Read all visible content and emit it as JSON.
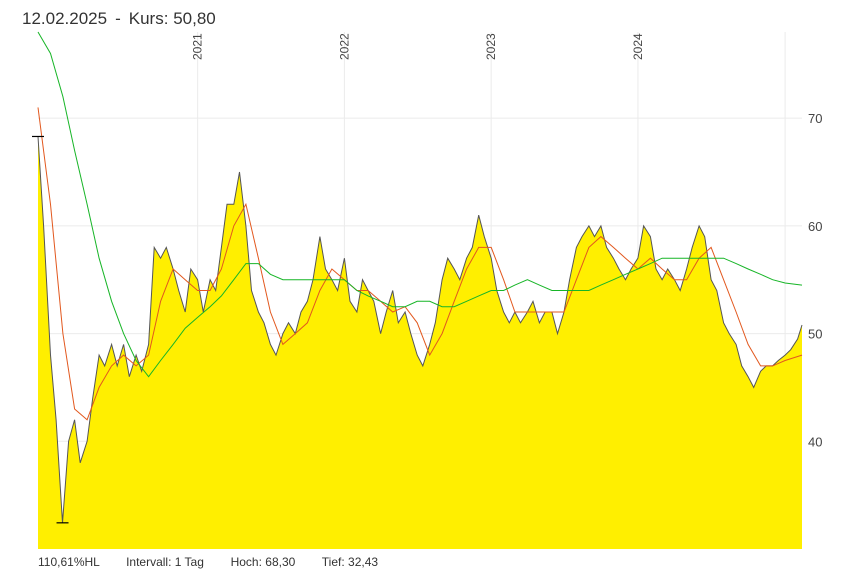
{
  "header": {
    "date": "12.02.2025",
    "separator": "-",
    "price_label": "Kurs:",
    "price_value": "50,80"
  },
  "footer": {
    "hl_ratio": "110,61%HL",
    "interval": "Intervall: 1 Tag",
    "high_label": "Hoch:",
    "high_value": "68,30",
    "low_label": "Tief:",
    "low_value": "32,43"
  },
  "colors": {
    "area_fill": "#ffef00",
    "price_line": "#555555",
    "ma_short": "#e2581e",
    "ma_long": "#17b527",
    "grid": "#ebebeb"
  },
  "chart_data": {
    "type": "area",
    "x_tick_labels": [
      "2021",
      "2022",
      "2023",
      "2024"
    ],
    "y_tick_labels": [
      "40",
      "50",
      "60",
      "70"
    ],
    "ylim": [
      30,
      78
    ],
    "xlim": [
      "2019-12-01",
      "2025-02-12"
    ],
    "grid": true,
    "high": 68.3,
    "low": 32.43,
    "series": [
      {
        "role": "price",
        "points": [
          [
            "2019-12-01",
            68.3
          ],
          [
            "2019-12-15",
            60.0
          ],
          [
            "2020-01-01",
            48.0
          ],
          [
            "2020-01-15",
            42.0
          ],
          [
            "2020-01-31",
            32.43
          ],
          [
            "2020-02-15",
            40.0
          ],
          [
            "2020-03-01",
            42.0
          ],
          [
            "2020-03-15",
            38.0
          ],
          [
            "2020-04-01",
            40.0
          ],
          [
            "2020-04-15",
            44.0
          ],
          [
            "2020-05-01",
            48.0
          ],
          [
            "2020-05-15",
            47.0
          ],
          [
            "2020-06-01",
            49.0
          ],
          [
            "2020-06-15",
            47.0
          ],
          [
            "2020-07-01",
            49.0
          ],
          [
            "2020-07-15",
            46.0
          ],
          [
            "2020-08-01",
            48.0
          ],
          [
            "2020-08-15",
            46.5
          ],
          [
            "2020-09-01",
            49.0
          ],
          [
            "2020-09-15",
            58.0
          ],
          [
            "2020-10-01",
            57.0
          ],
          [
            "2020-10-15",
            58.0
          ],
          [
            "2020-11-01",
            56.0
          ],
          [
            "2020-11-15",
            54.0
          ],
          [
            "2020-12-01",
            52.0
          ],
          [
            "2020-12-15",
            56.0
          ],
          [
            "2021-01-01",
            55.0
          ],
          [
            "2021-01-15",
            52.0
          ],
          [
            "2021-02-01",
            55.0
          ],
          [
            "2021-02-15",
            54.0
          ],
          [
            "2021-03-01",
            58.0
          ],
          [
            "2021-03-15",
            62.0
          ],
          [
            "2021-04-01",
            62.0
          ],
          [
            "2021-04-15",
            65.0
          ],
          [
            "2021-05-01",
            60.0
          ],
          [
            "2021-05-15",
            54.0
          ],
          [
            "2021-06-01",
            52.0
          ],
          [
            "2021-06-15",
            51.0
          ],
          [
            "2021-07-01",
            49.0
          ],
          [
            "2021-07-15",
            48.0
          ],
          [
            "2021-08-01",
            50.0
          ],
          [
            "2021-08-15",
            51.0
          ],
          [
            "2021-09-01",
            50.0
          ],
          [
            "2021-09-15",
            52.0
          ],
          [
            "2021-10-01",
            53.0
          ],
          [
            "2021-10-15",
            55.0
          ],
          [
            "2021-11-01",
            59.0
          ],
          [
            "2021-11-15",
            56.0
          ],
          [
            "2021-12-01",
            55.0
          ],
          [
            "2021-12-15",
            54.0
          ],
          [
            "2022-01-01",
            57.0
          ],
          [
            "2022-01-15",
            53.0
          ],
          [
            "2022-02-01",
            52.0
          ],
          [
            "2022-02-15",
            55.0
          ],
          [
            "2022-03-01",
            54.0
          ],
          [
            "2022-03-15",
            53.0
          ],
          [
            "2022-04-01",
            50.0
          ],
          [
            "2022-04-15",
            52.0
          ],
          [
            "2022-05-01",
            54.0
          ],
          [
            "2022-05-15",
            51.0
          ],
          [
            "2022-06-01",
            52.0
          ],
          [
            "2022-06-15",
            50.0
          ],
          [
            "2022-07-01",
            48.0
          ],
          [
            "2022-07-15",
            47.0
          ],
          [
            "2022-08-01",
            49.0
          ],
          [
            "2022-08-15",
            51.0
          ],
          [
            "2022-09-01",
            55.0
          ],
          [
            "2022-09-15",
            57.0
          ],
          [
            "2022-10-01",
            56.0
          ],
          [
            "2022-10-15",
            55.0
          ],
          [
            "2022-11-01",
            57.0
          ],
          [
            "2022-11-15",
            58.0
          ],
          [
            "2022-12-01",
            61.0
          ],
          [
            "2022-12-15",
            59.0
          ],
          [
            "2023-01-01",
            57.0
          ],
          [
            "2023-01-15",
            54.0
          ],
          [
            "2023-02-01",
            52.0
          ],
          [
            "2023-02-15",
            51.0
          ],
          [
            "2023-03-01",
            52.0
          ],
          [
            "2023-03-15",
            51.0
          ],
          [
            "2023-04-01",
            52.0
          ],
          [
            "2023-04-15",
            53.0
          ],
          [
            "2023-05-01",
            51.0
          ],
          [
            "2023-05-15",
            52.0
          ],
          [
            "2023-06-01",
            52.0
          ],
          [
            "2023-06-15",
            50.0
          ],
          [
            "2023-07-01",
            52.0
          ],
          [
            "2023-07-15",
            55.0
          ],
          [
            "2023-08-01",
            58.0
          ],
          [
            "2023-08-15",
            59.0
          ],
          [
            "2023-09-01",
            60.0
          ],
          [
            "2023-09-15",
            59.0
          ],
          [
            "2023-10-01",
            60.0
          ],
          [
            "2023-10-15",
            58.0
          ],
          [
            "2023-11-01",
            57.0
          ],
          [
            "2023-11-15",
            56.0
          ],
          [
            "2023-12-01",
            55.0
          ],
          [
            "2023-12-15",
            56.0
          ],
          [
            "2024-01-01",
            57.0
          ],
          [
            "2024-01-15",
            60.0
          ],
          [
            "2024-02-01",
            59.0
          ],
          [
            "2024-02-15",
            56.0
          ],
          [
            "2024-03-01",
            55.0
          ],
          [
            "2024-03-15",
            56.0
          ],
          [
            "2024-04-01",
            55.0
          ],
          [
            "2024-04-15",
            54.0
          ],
          [
            "2024-05-01",
            56.0
          ],
          [
            "2024-05-15",
            58.0
          ],
          [
            "2024-06-01",
            60.0
          ],
          [
            "2024-06-15",
            59.0
          ],
          [
            "2024-07-01",
            55.0
          ],
          [
            "2024-07-15",
            54.0
          ],
          [
            "2024-08-01",
            51.0
          ],
          [
            "2024-08-15",
            50.0
          ],
          [
            "2024-09-01",
            49.0
          ],
          [
            "2024-09-15",
            47.0
          ],
          [
            "2024-10-01",
            46.0
          ],
          [
            "2024-10-15",
            45.0
          ],
          [
            "2024-11-01",
            46.5
          ],
          [
            "2024-11-15",
            47.0
          ],
          [
            "2024-12-01",
            47.0
          ],
          [
            "2024-12-15",
            47.5
          ],
          [
            "2025-01-01",
            48.0
          ],
          [
            "2025-01-15",
            48.5
          ],
          [
            "2025-02-01",
            49.5
          ],
          [
            "2025-02-12",
            50.8
          ]
        ]
      },
      {
        "role": "moving-average-short",
        "points": [
          [
            "2019-12-01",
            71.0
          ],
          [
            "2020-01-01",
            62.0
          ],
          [
            "2020-02-01",
            50.0
          ],
          [
            "2020-03-01",
            43.0
          ],
          [
            "2020-04-01",
            42.0
          ],
          [
            "2020-05-01",
            45.0
          ],
          [
            "2020-06-01",
            47.0
          ],
          [
            "2020-07-01",
            48.0
          ],
          [
            "2020-08-01",
            47.0
          ],
          [
            "2020-09-01",
            48.0
          ],
          [
            "2020-10-01",
            53.0
          ],
          [
            "2020-11-01",
            56.0
          ],
          [
            "2020-12-01",
            55.0
          ],
          [
            "2021-01-01",
            54.0
          ],
          [
            "2021-02-01",
            54.0
          ],
          [
            "2021-03-01",
            56.0
          ],
          [
            "2021-04-01",
            60.0
          ],
          [
            "2021-05-01",
            62.0
          ],
          [
            "2021-06-01",
            57.0
          ],
          [
            "2021-07-01",
            52.0
          ],
          [
            "2021-08-01",
            49.0
          ],
          [
            "2021-09-01",
            50.0
          ],
          [
            "2021-10-01",
            51.0
          ],
          [
            "2021-11-01",
            54.0
          ],
          [
            "2021-12-01",
            56.0
          ],
          [
            "2022-01-01",
            55.0
          ],
          [
            "2022-02-01",
            54.0
          ],
          [
            "2022-03-01",
            54.0
          ],
          [
            "2022-04-01",
            53.0
          ],
          [
            "2022-05-01",
            52.0
          ],
          [
            "2022-06-01",
            52.5
          ],
          [
            "2022-07-01",
            51.0
          ],
          [
            "2022-08-01",
            48.0
          ],
          [
            "2022-09-01",
            50.0
          ],
          [
            "2022-10-01",
            53.0
          ],
          [
            "2022-11-01",
            56.0
          ],
          [
            "2022-12-01",
            58.0
          ],
          [
            "2023-01-01",
            58.0
          ],
          [
            "2023-02-01",
            55.0
          ],
          [
            "2023-03-01",
            52.0
          ],
          [
            "2023-04-01",
            52.0
          ],
          [
            "2023-05-01",
            52.0
          ],
          [
            "2023-06-01",
            52.0
          ],
          [
            "2023-07-01",
            52.0
          ],
          [
            "2023-08-01",
            55.0
          ],
          [
            "2023-09-01",
            58.0
          ],
          [
            "2023-10-01",
            59.0
          ],
          [
            "2023-11-01",
            58.0
          ],
          [
            "2023-12-01",
            57.0
          ],
          [
            "2024-01-01",
            56.0
          ],
          [
            "2024-02-01",
            57.0
          ],
          [
            "2024-03-01",
            56.0
          ],
          [
            "2024-04-01",
            55.0
          ],
          [
            "2024-05-01",
            55.0
          ],
          [
            "2024-06-01",
            57.0
          ],
          [
            "2024-07-01",
            58.0
          ],
          [
            "2024-08-01",
            55.0
          ],
          [
            "2024-09-01",
            52.0
          ],
          [
            "2024-10-01",
            49.0
          ],
          [
            "2024-11-01",
            47.0
          ],
          [
            "2024-12-01",
            47.0
          ],
          [
            "2025-01-01",
            47.5
          ],
          [
            "2025-02-12",
            48.0
          ]
        ]
      },
      {
        "role": "moving-average-long",
        "points": [
          [
            "2019-12-01",
            78.0
          ],
          [
            "2020-01-01",
            76.0
          ],
          [
            "2020-02-01",
            72.0
          ],
          [
            "2020-03-01",
            67.0
          ],
          [
            "2020-04-01",
            62.0
          ],
          [
            "2020-05-01",
            57.0
          ],
          [
            "2020-06-01",
            53.0
          ],
          [
            "2020-07-01",
            50.0
          ],
          [
            "2020-08-01",
            47.5
          ],
          [
            "2020-09-01",
            46.0
          ],
          [
            "2020-10-01",
            47.5
          ],
          [
            "2020-11-01",
            49.0
          ],
          [
            "2020-12-01",
            50.5
          ],
          [
            "2021-01-01",
            51.5
          ],
          [
            "2021-02-01",
            52.5
          ],
          [
            "2021-03-01",
            53.5
          ],
          [
            "2021-04-01",
            55.0
          ],
          [
            "2021-05-01",
            56.5
          ],
          [
            "2021-06-01",
            56.5
          ],
          [
            "2021-07-01",
            55.5
          ],
          [
            "2021-08-01",
            55.0
          ],
          [
            "2021-09-01",
            55.0
          ],
          [
            "2021-10-01",
            55.0
          ],
          [
            "2021-11-01",
            55.0
          ],
          [
            "2021-12-01",
            55.0
          ],
          [
            "2022-01-01",
            55.0
          ],
          [
            "2022-02-01",
            54.0
          ],
          [
            "2022-03-01",
            53.5
          ],
          [
            "2022-04-01",
            53.0
          ],
          [
            "2022-05-01",
            52.5
          ],
          [
            "2022-06-01",
            52.5
          ],
          [
            "2022-07-01",
            53.0
          ],
          [
            "2022-08-01",
            53.0
          ],
          [
            "2022-09-01",
            52.5
          ],
          [
            "2022-10-01",
            52.5
          ],
          [
            "2022-11-01",
            53.0
          ],
          [
            "2022-12-01",
            53.5
          ],
          [
            "2023-01-01",
            54.0
          ],
          [
            "2023-02-01",
            54.0
          ],
          [
            "2023-03-01",
            54.5
          ],
          [
            "2023-04-01",
            55.0
          ],
          [
            "2023-05-01",
            54.5
          ],
          [
            "2023-06-01",
            54.0
          ],
          [
            "2023-07-01",
            54.0
          ],
          [
            "2023-08-01",
            54.0
          ],
          [
            "2023-09-01",
            54.0
          ],
          [
            "2023-10-01",
            54.5
          ],
          [
            "2023-11-01",
            55.0
          ],
          [
            "2023-12-01",
            55.5
          ],
          [
            "2024-01-01",
            56.0
          ],
          [
            "2024-02-01",
            56.5
          ],
          [
            "2024-03-01",
            57.0
          ],
          [
            "2024-04-01",
            57.0
          ],
          [
            "2024-05-01",
            57.0
          ],
          [
            "2024-06-01",
            57.0
          ],
          [
            "2024-07-01",
            57.0
          ],
          [
            "2024-08-01",
            57.0
          ],
          [
            "2024-09-01",
            56.5
          ],
          [
            "2024-10-01",
            56.0
          ],
          [
            "2024-11-01",
            55.5
          ],
          [
            "2024-12-01",
            55.0
          ],
          [
            "2025-01-01",
            54.7
          ],
          [
            "2025-02-12",
            54.5
          ]
        ]
      }
    ]
  }
}
